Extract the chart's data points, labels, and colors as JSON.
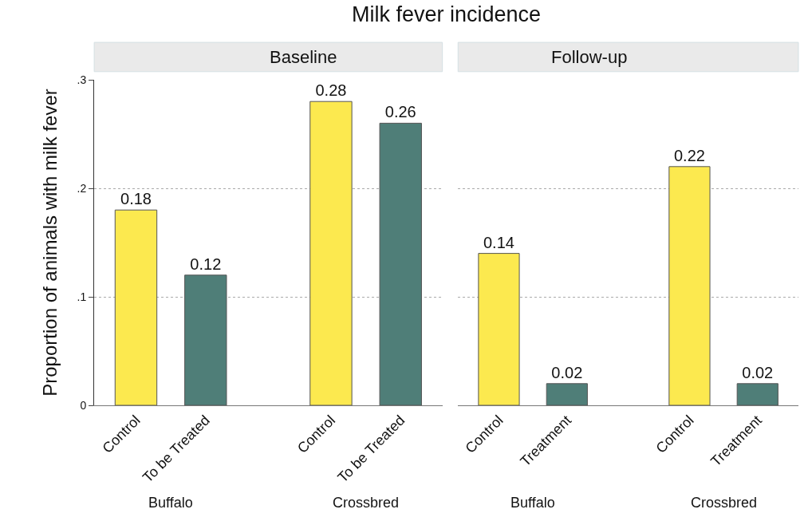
{
  "chart_data": [
    {
      "type": "bar",
      "title": "Milk fever incidence",
      "subtitle": "Baseline",
      "ylabel": "Proportion of animals with milk fever",
      "categories": [
        "Control",
        "To be Treated",
        "Control",
        "To be Treated"
      ],
      "values": [
        0.18,
        0.12,
        0.28,
        0.26
      ],
      "colors": [
        "#fce94f",
        "#4f7e78",
        "#fce94f",
        "#4f7e78"
      ],
      "data_labels": true,
      "grid": "y",
      "ylim": [
        0,
        0.3
      ],
      "yticks": [
        0,
        {
          "value": 0.1,
          "label": ".1"
        },
        {
          "value": 0.2,
          "label": ".2"
        },
        {
          "value": 0.3,
          "label": ".3"
        }
      ],
      "annotations": [
        "Buffalo",
        "Crossbred"
      ]
    },
    {
      "type": "bar",
      "subtitle": "Follow-up",
      "categories": [
        "Control",
        "Treatment",
        "Control",
        "Treatment"
      ],
      "values": [
        0.14,
        0.02,
        0.22,
        0.02
      ],
      "colors": [
        "#fce94f",
        "#4f7e78",
        "#fce94f",
        "#4f7e78"
      ],
      "data_labels": true,
      "grid": "y",
      "ylim": [
        0,
        0.3
      ],
      "yticks": [
        {
          "value": 0,
          "label": null
        },
        {
          "value": 0.1,
          "label": null
        },
        {
          "value": 0.2,
          "label": null
        },
        {
          "value": 0.3,
          "label": null
        }
      ],
      "tick_labels": "x",
      "annotations": [
        "Buffalo",
        "Crossbred"
      ]
    }
  ]
}
